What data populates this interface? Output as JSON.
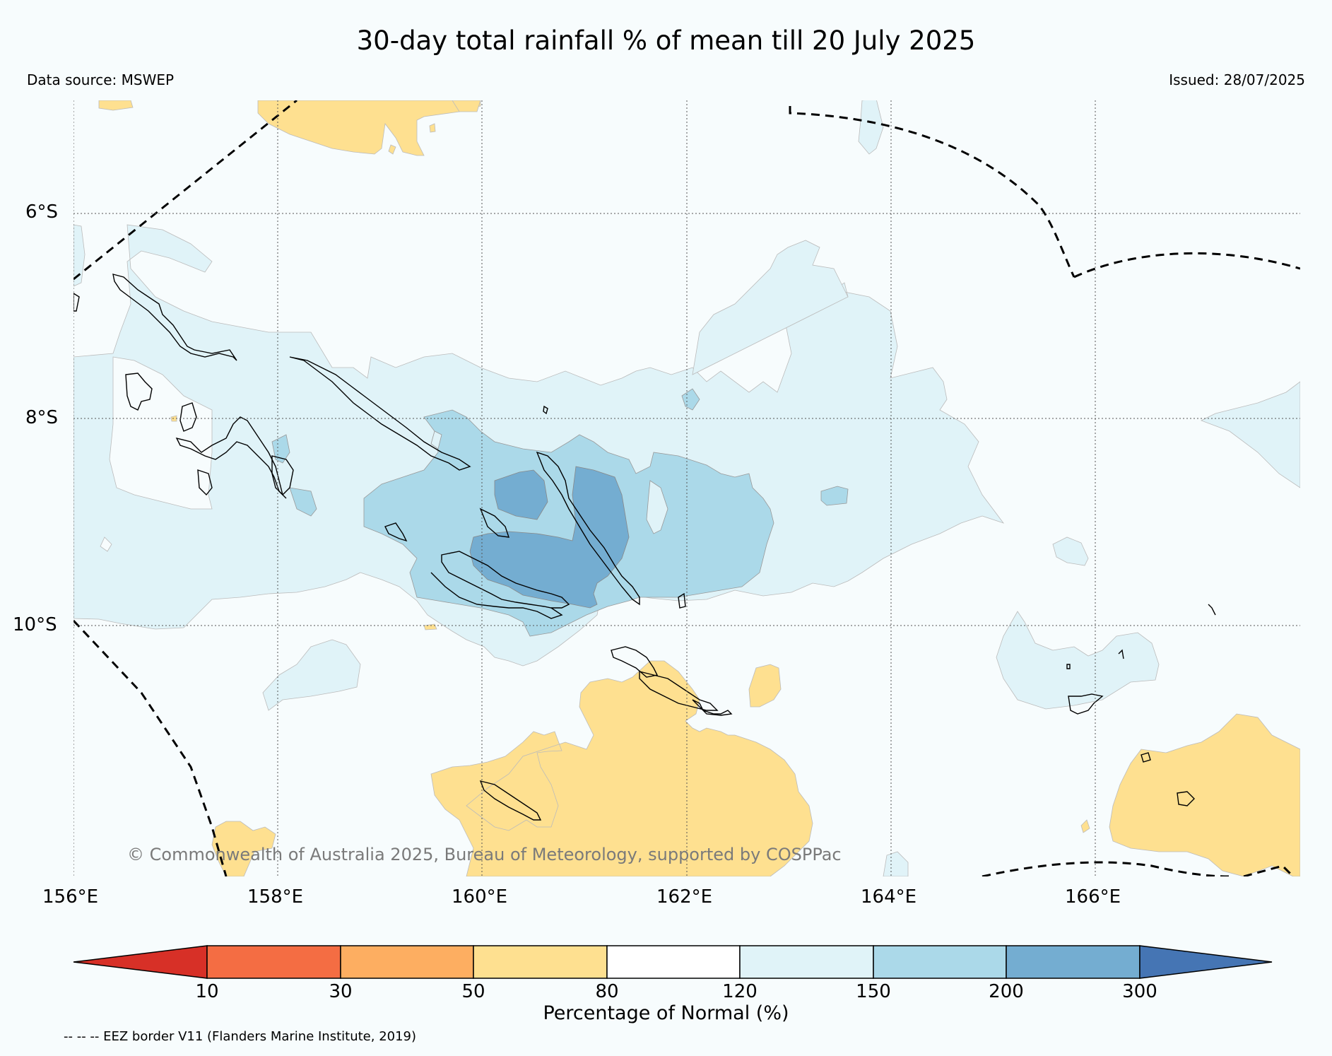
{
  "title": "30-day total rainfall % of mean till 20 July 2025",
  "data_source": "Data source: MSWEP",
  "issued": "Issued: 28/07/2025",
  "map": {
    "lat_labels": [
      "6°S",
      "8°S",
      "10°S"
    ],
    "lon_labels": [
      "156°E",
      "158°E",
      "160°E",
      "162°E",
      "164°E",
      "166°E"
    ],
    "credit": "© Commonwealth of Australia 2025, Bureau of Meteorology, supported by COSPPac"
  },
  "colorbar": {
    "ticks": [
      "10",
      "30",
      "50",
      "80",
      "120",
      "150",
      "200",
      "300"
    ],
    "colors": [
      "#d73027",
      "#f46d43",
      "#fdae61",
      "#fee090",
      "#ffffff",
      "#e0f3f8",
      "#abd9e9",
      "#74add1",
      "#4575b4"
    ],
    "label": "Percentage of Normal (%)"
  },
  "legend_note": "-- -- -- EEZ border V11 (Flanders Marine Institute, 2019)"
}
